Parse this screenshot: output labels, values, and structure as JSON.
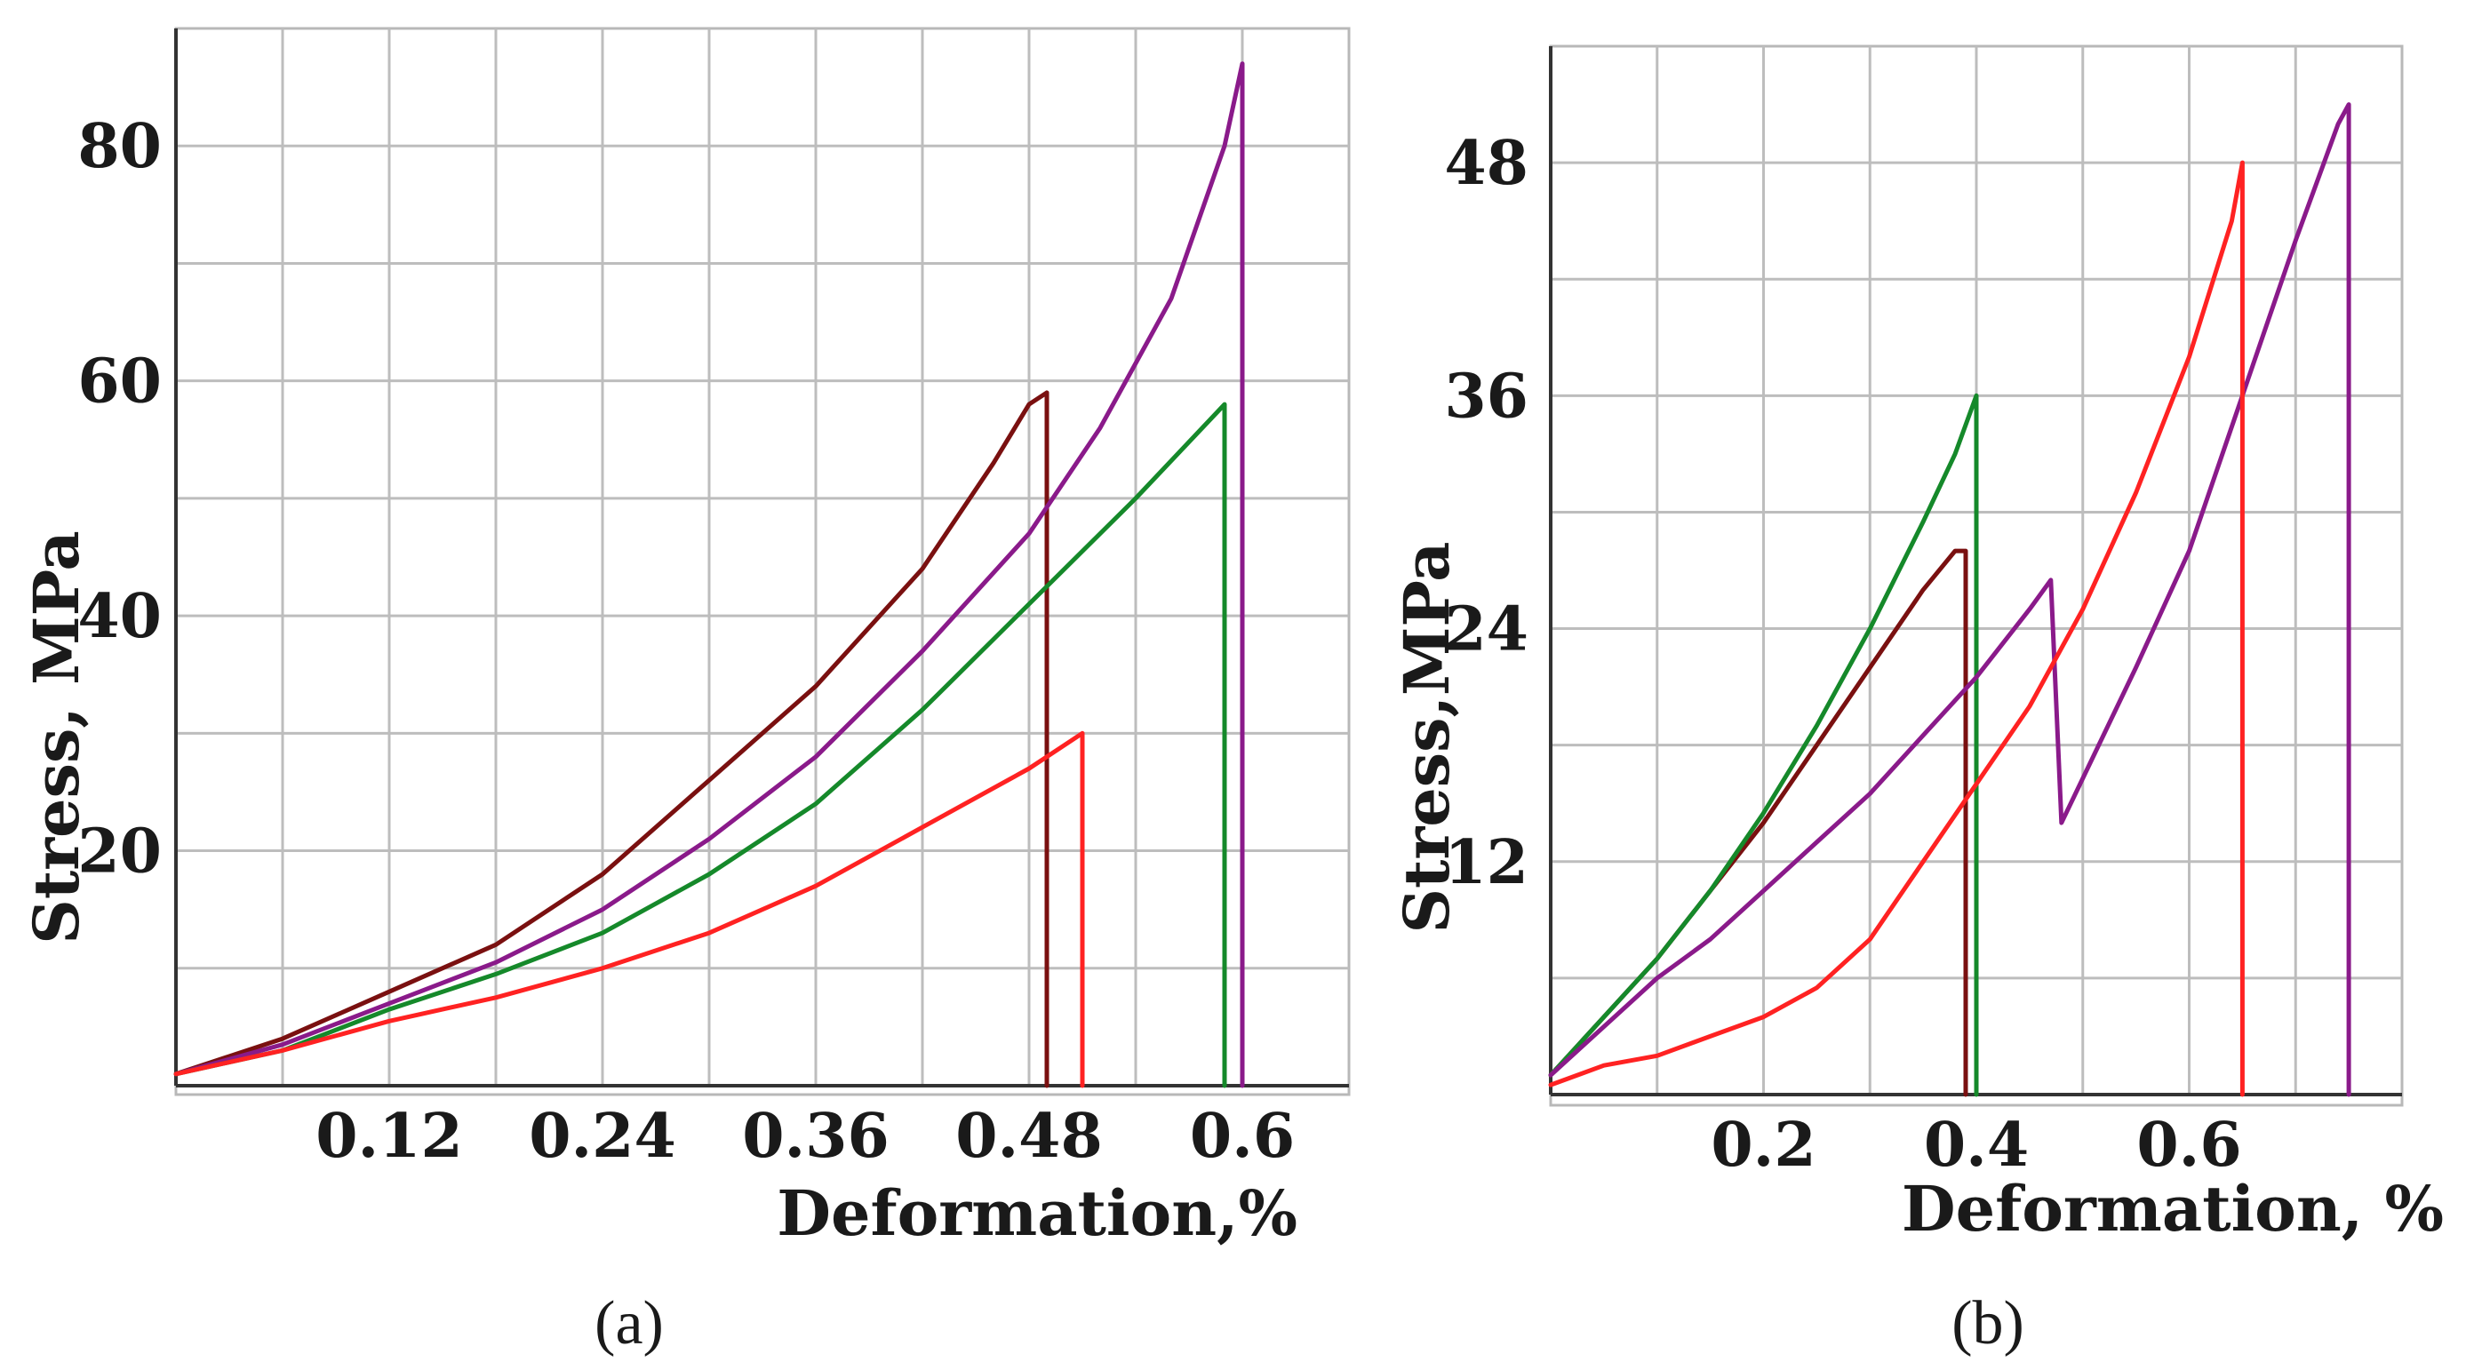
{
  "chart_data": [
    {
      "panel": "a",
      "type": "line",
      "title": "",
      "xlabel": "Deformation,%",
      "ylabel": "Stress, MPa",
      "xlim": [
        0,
        0.66
      ],
      "ylim": [
        0,
        90
      ],
      "xticks": [
        0.12,
        0.24,
        0.36,
        0.48,
        0.6
      ],
      "xtick_labels": [
        "0.12",
        "0.24",
        "0.36",
        "0.48",
        "0.6"
      ],
      "yticks": [
        20,
        40,
        60,
        80
      ],
      "ytick_labels": [
        "20",
        "40",
        "60",
        "80"
      ],
      "series": [
        {
          "name": "dark-red",
          "color": "#7a1010",
          "x": [
            0,
            0.06,
            0.12,
            0.18,
            0.24,
            0.3,
            0.36,
            0.42,
            0.46,
            0.48,
            0.49,
            0.49
          ],
          "y": [
            1,
            4,
            8,
            12,
            18,
            26,
            34,
            44,
            53,
            58,
            59,
            0
          ]
        },
        {
          "name": "purple",
          "color": "#8a1a8a",
          "x": [
            0,
            0.06,
            0.12,
            0.18,
            0.24,
            0.3,
            0.36,
            0.42,
            0.48,
            0.52,
            0.56,
            0.59,
            0.6,
            0.6
          ],
          "y": [
            1,
            3.5,
            7,
            10.5,
            15,
            21,
            28,
            37,
            47,
            56,
            67,
            80,
            87,
            0
          ]
        },
        {
          "name": "green",
          "color": "#15892a",
          "x": [
            0,
            0.06,
            0.12,
            0.18,
            0.24,
            0.3,
            0.36,
            0.42,
            0.48,
            0.54,
            0.59,
            0.59
          ],
          "y": [
            1,
            3,
            6.5,
            9.5,
            13,
            18,
            24,
            32,
            41,
            50,
            58,
            0
          ]
        },
        {
          "name": "red",
          "color": "#ff2222",
          "x": [
            0,
            0.06,
            0.12,
            0.18,
            0.24,
            0.3,
            0.36,
            0.42,
            0.48,
            0.5,
            0.51,
            0.51
          ],
          "y": [
            1,
            3,
            5.5,
            7.5,
            10,
            13,
            17,
            22,
            27,
            29,
            30,
            0
          ]
        }
      ],
      "panel_label": "(a)"
    },
    {
      "panel": "b",
      "type": "line",
      "title": "",
      "xlabel": "Deformation, %",
      "ylabel": "Stress,MPa",
      "xlim": [
        0,
        0.8
      ],
      "ylim": [
        0,
        54
      ],
      "xticks": [
        0.2,
        0.4,
        0.6
      ],
      "xtick_labels": [
        "0.2",
        "0.4",
        "0.6"
      ],
      "yticks": [
        12,
        24,
        36,
        48
      ],
      "ytick_labels": [
        "12",
        "24",
        "36",
        "48"
      ],
      "series": [
        {
          "name": "dark-red",
          "color": "#7a1010",
          "x": [
            0,
            0.05,
            0.1,
            0.15,
            0.2,
            0.25,
            0.3,
            0.35,
            0.38,
            0.39,
            0.39
          ],
          "y": [
            1,
            4,
            7,
            10.5,
            14,
            18,
            22,
            26,
            28,
            28,
            0
          ]
        },
        {
          "name": "green",
          "color": "#15892a",
          "x": [
            0,
            0.05,
            0.1,
            0.15,
            0.2,
            0.25,
            0.3,
            0.35,
            0.38,
            0.4,
            0.4
          ],
          "y": [
            1,
            4,
            7,
            10.5,
            14.5,
            19,
            24,
            29.5,
            33,
            36,
            0
          ]
        },
        {
          "name": "purple",
          "color": "#8a1a8a",
          "x": [
            0,
            0.05,
            0.1,
            0.15,
            0.2,
            0.25,
            0.3,
            0.35,
            0.4,
            0.45,
            0.47,
            0.48,
            0.55,
            0.6,
            0.65,
            0.7,
            0.74,
            0.75,
            0.75
          ],
          "y": [
            1,
            3.5,
            6,
            8,
            10.5,
            13,
            15.5,
            18.5,
            21.5,
            25,
            26.5,
            14,
            22,
            28,
            36,
            44,
            50,
            51,
            0
          ]
        },
        {
          "name": "red",
          "color": "#ff2222",
          "x": [
            0,
            0.05,
            0.1,
            0.15,
            0.2,
            0.25,
            0.3,
            0.35,
            0.4,
            0.45,
            0.5,
            0.55,
            0.6,
            0.64,
            0.65,
            0.65
          ],
          "y": [
            0.5,
            1.5,
            2,
            3,
            4,
            5.5,
            8,
            12,
            16,
            20,
            25,
            31,
            38,
            45,
            48,
            0
          ]
        }
      ],
      "panel_label": "(b)"
    }
  ]
}
